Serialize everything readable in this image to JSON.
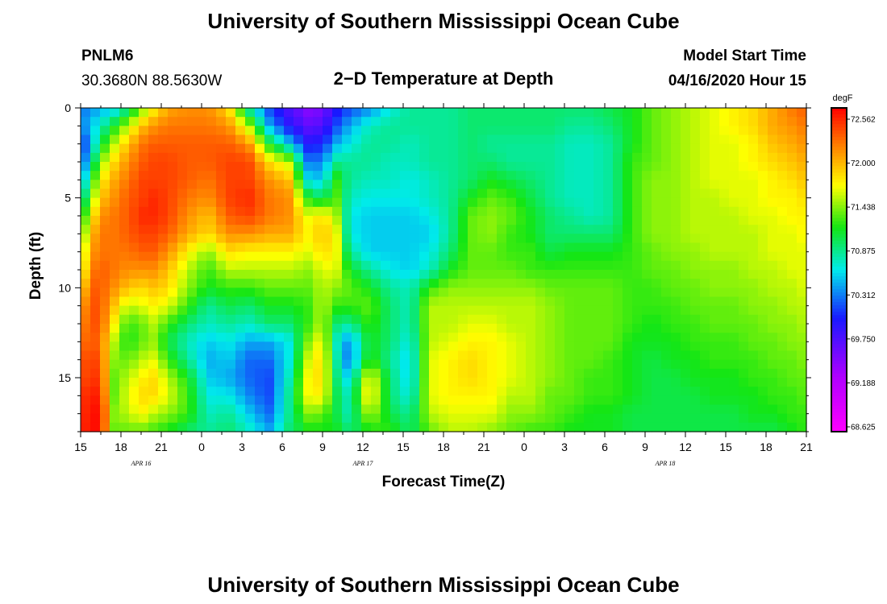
{
  "page": {
    "title_top": "University of Southern Mississippi Ocean Cube",
    "title_bottom": "University of Southern Mississippi Ocean Cube",
    "station_id": "PNLM6",
    "station_coords": "30.3680N 88.5630W",
    "product_title": "2−D Temperature at Depth",
    "model_start_label": "Model Start Time",
    "model_start_value": "04/16/2020 Hour 15"
  },
  "chart_data": {
    "type": "heatmap",
    "title": "2−D Temperature at Depth",
    "xlabel": "Forecast Time(Z)",
    "ylabel": "Depth (ft)",
    "x_ticks": [
      "15",
      "18",
      "21",
      "0",
      "3",
      "6",
      "9",
      "12",
      "15",
      "18",
      "21",
      "0",
      "3",
      "6",
      "9",
      "12",
      "15",
      "18",
      "21"
    ],
    "x_date_labels": [
      {
        "label": "APR  16",
        "hour_index": 1.5
      },
      {
        "label": "APR  17",
        "hour_index": 7
      },
      {
        "label": "APR  18",
        "hour_index": 14.5
      }
    ],
    "x_range_hours": [
      0,
      54
    ],
    "y_ticks": [
      0,
      5,
      10,
      15
    ],
    "ylim": [
      0,
      18
    ],
    "colorbar": {
      "unit": "degF",
      "labels": [
        "72.562",
        "72.000",
        "71.438",
        "70.875",
        "70.312",
        "69.750",
        "69.188",
        "68.625"
      ],
      "min": 68.625,
      "max": 72.75
    },
    "anchors_time_hours": [
      0,
      0.5,
      1.5,
      2.5,
      3.5,
      4.5,
      5.5,
      6.5,
      8,
      9.5,
      11,
      12.5,
      14,
      15.5,
      17,
      18,
      19,
      20,
      21.5,
      23,
      24.5,
      26,
      27.5,
      29,
      30.5,
      32,
      33.5,
      35,
      36.5,
      38,
      39.5,
      41,
      42.5,
      44,
      45.5,
      47,
      48.5,
      50,
      51.5,
      53,
      54
    ],
    "anchors_depth_ft": [
      0,
      1,
      2,
      3,
      4,
      5,
      6,
      7,
      8,
      9,
      10,
      11,
      12,
      13,
      14,
      15,
      16,
      17,
      18
    ],
    "values_degF": [
      [
        70.3,
        70.4,
        70.2,
        70.3,
        70.3,
        70.6,
        70.8,
        70.9,
        71.0,
        71.1,
        71.3,
        71.6,
        71.8,
        72.0,
        72.1,
        72.2,
        72.3,
        72.4,
        72.5
      ],
      [
        70.4,
        70.5,
        70.3,
        70.5,
        70.9,
        71.2,
        71.6,
        71.9,
        72.1,
        72.2,
        72.4,
        72.5,
        72.5,
        72.5,
        72.6,
        72.6,
        72.7,
        72.7,
        72.7
      ],
      [
        70.5,
        70.8,
        71.1,
        71.5,
        71.8,
        72.0,
        72.2,
        72.3,
        72.3,
        72.4,
        72.4,
        72.4,
        72.4,
        72.3,
        72.4,
        72.5,
        72.6,
        72.7,
        72.7
      ],
      [
        70.6,
        71.2,
        71.6,
        71.9,
        72.1,
        72.2,
        72.3,
        72.3,
        72.3,
        72.3,
        72.2,
        72.0,
        71.8,
        71.6,
        71.5,
        71.4,
        71.4,
        71.5,
        71.4
      ],
      [
        70.9,
        71.6,
        72.0,
        72.2,
        72.3,
        72.4,
        72.4,
        72.4,
        72.3,
        72.2,
        72.0,
        71.6,
        71.3,
        71.2,
        71.4,
        71.6,
        71.7,
        71.6,
        71.4
      ],
      [
        71.4,
        72.0,
        72.3,
        72.4,
        72.5,
        72.5,
        72.6,
        72.5,
        72.4,
        72.2,
        71.9,
        71.7,
        71.4,
        71.4,
        71.6,
        71.8,
        71.9,
        71.8,
        71.4
      ],
      [
        71.8,
        72.2,
        72.4,
        72.5,
        72.5,
        72.6,
        72.6,
        72.5,
        72.4,
        72.2,
        72.0,
        71.8,
        71.6,
        71.5,
        71.7,
        71.9,
        71.9,
        71.6,
        71.3
      ],
      [
        72.1,
        72.3,
        72.4,
        72.5,
        72.5,
        72.5,
        72.5,
        72.4,
        72.2,
        72.0,
        71.9,
        71.7,
        71.3,
        71.1,
        71.3,
        71.6,
        71.7,
        71.5,
        71.2
      ],
      [
        72.2,
        72.3,
        72.4,
        72.4,
        72.4,
        72.3,
        72.2,
        72.1,
        71.8,
        71.6,
        71.5,
        71.3,
        71.0,
        70.8,
        70.9,
        71.2,
        71.3,
        71.3,
        71.0
      ],
      [
        72.2,
        72.3,
        72.4,
        72.4,
        72.3,
        72.2,
        72.0,
        71.9,
        71.5,
        71.3,
        71.2,
        70.9,
        70.8,
        70.6,
        70.5,
        70.6,
        70.7,
        70.8,
        70.9
      ],
      [
        71.9,
        72.2,
        72.4,
        72.5,
        72.5,
        72.5,
        72.4,
        72.2,
        71.9,
        71.6,
        71.3,
        71.1,
        70.9,
        70.7,
        70.6,
        70.5,
        70.7,
        70.9,
        71.0
      ],
      [
        70.8,
        71.6,
        72.2,
        72.5,
        72.5,
        72.6,
        72.5,
        72.2,
        71.8,
        71.6,
        71.3,
        71.0,
        70.8,
        70.5,
        70.3,
        70.3,
        70.4,
        70.6,
        70.8
      ],
      [
        70.2,
        70.5,
        71.2,
        71.9,
        72.2,
        72.3,
        72.3,
        72.1,
        71.8,
        71.6,
        71.4,
        71.2,
        71.0,
        70.5,
        70.3,
        70.2,
        70.2,
        70.3,
        70.5
      ],
      [
        69.8,
        70.0,
        70.6,
        71.6,
        72.0,
        72.2,
        72.2,
        72.1,
        71.8,
        71.6,
        71.4,
        71.2,
        71.0,
        70.7,
        70.7,
        70.8,
        70.9,
        70.9,
        71.0
      ],
      [
        69.5,
        69.7,
        70.0,
        70.3,
        70.6,
        71.2,
        71.7,
        71.8,
        71.7,
        71.5,
        71.4,
        71.3,
        71.3,
        71.5,
        71.7,
        71.8,
        71.8,
        71.5,
        71.2
      ],
      [
        69.6,
        69.8,
        70.1,
        70.4,
        70.6,
        71.0,
        71.9,
        72.0,
        71.9,
        71.7,
        71.6,
        71.6,
        71.6,
        71.8,
        71.9,
        71.9,
        71.8,
        71.4,
        71.2
      ],
      [
        70.0,
        70.2,
        70.5,
        70.9,
        71.3,
        71.4,
        71.6,
        71.8,
        71.8,
        71.7,
        71.5,
        71.3,
        71.0,
        70.8,
        70.9,
        71.0,
        71.1,
        71.1,
        71.2
      ],
      [
        70.2,
        70.5,
        70.7,
        70.9,
        70.9,
        70.8,
        70.7,
        70.7,
        70.9,
        71.2,
        71.4,
        71.3,
        70.9,
        70.4,
        70.3,
        70.6,
        70.8,
        70.8,
        71.0
      ],
      [
        70.4,
        70.8,
        70.9,
        70.9,
        70.8,
        70.7,
        70.6,
        70.6,
        70.6,
        70.9,
        71.2,
        71.4,
        71.3,
        71.2,
        71.3,
        71.8,
        71.9,
        71.6,
        71.2
      ],
      [
        70.7,
        70.9,
        70.9,
        70.8,
        70.8,
        70.7,
        70.6,
        70.6,
        70.6,
        70.7,
        70.9,
        71.0,
        71.0,
        71.0,
        70.9,
        71.0,
        71.0,
        71.1,
        71.3
      ],
      [
        70.9,
        70.9,
        70.8,
        70.8,
        70.7,
        70.7,
        70.6,
        70.6,
        70.6,
        70.6,
        70.8,
        70.8,
        70.8,
        70.7,
        70.6,
        70.6,
        70.7,
        70.9,
        71.0
      ],
      [
        70.9,
        70.9,
        70.9,
        70.9,
        70.8,
        70.8,
        70.7,
        70.6,
        70.7,
        70.8,
        71.3,
        71.6,
        71.6,
        71.6,
        71.7,
        71.7,
        71.7,
        71.6,
        71.4
      ],
      [
        70.9,
        70.9,
        70.9,
        70.9,
        70.9,
        70.9,
        70.9,
        70.9,
        71.0,
        71.2,
        71.5,
        71.6,
        71.6,
        71.7,
        71.8,
        71.8,
        71.8,
        71.7,
        71.6
      ],
      [
        71.0,
        71.0,
        71.0,
        71.0,
        71.0,
        71.2,
        71.4,
        71.4,
        71.4,
        71.4,
        71.5,
        71.6,
        71.7,
        71.8,
        71.9,
        71.9,
        71.8,
        71.7,
        71.6
      ],
      [
        71.0,
        71.0,
        70.9,
        71.0,
        71.2,
        71.4,
        71.5,
        71.5,
        71.4,
        71.4,
        71.5,
        71.6,
        71.7,
        71.8,
        71.8,
        71.8,
        71.8,
        71.7,
        71.5
      ],
      [
        71.0,
        71.0,
        70.9,
        70.9,
        71.1,
        71.3,
        71.4,
        71.3,
        71.3,
        71.4,
        71.5,
        71.6,
        71.6,
        71.7,
        71.7,
        71.7,
        71.6,
        71.5,
        71.4
      ],
      [
        71.0,
        71.0,
        70.9,
        70.9,
        71.0,
        71.1,
        71.2,
        71.2,
        71.3,
        71.3,
        71.5,
        71.6,
        71.6,
        71.6,
        71.6,
        71.6,
        71.6,
        71.5,
        71.3
      ],
      [
        71.0,
        71.0,
        70.9,
        70.9,
        70.9,
        70.9,
        71.0,
        71.0,
        71.1,
        71.3,
        71.4,
        71.5,
        71.5,
        71.5,
        71.5,
        71.5,
        71.4,
        71.4,
        71.3
      ],
      [
        71.0,
        70.9,
        70.8,
        70.8,
        70.8,
        70.8,
        70.9,
        71.0,
        71.2,
        71.3,
        71.4,
        71.4,
        71.4,
        71.4,
        71.4,
        71.4,
        71.4,
        71.3,
        71.2
      ],
      [
        71.0,
        70.9,
        70.8,
        70.8,
        70.8,
        70.8,
        70.8,
        71.0,
        71.2,
        71.3,
        71.4,
        71.4,
        71.4,
        71.4,
        71.4,
        71.3,
        71.3,
        71.2,
        71.2
      ],
      [
        71.1,
        71.0,
        70.9,
        70.9,
        70.9,
        70.9,
        70.9,
        71.0,
        71.2,
        71.3,
        71.4,
        71.4,
        71.4,
        71.4,
        71.3,
        71.3,
        71.3,
        71.2,
        71.2
      ],
      [
        71.2,
        71.2,
        71.2,
        71.3,
        71.3,
        71.3,
        71.3,
        71.3,
        71.3,
        71.3,
        71.3,
        71.3,
        71.3,
        71.2,
        71.2,
        71.2,
        71.2,
        71.1,
        71.1
      ],
      [
        71.4,
        71.4,
        71.4,
        71.4,
        71.5,
        71.5,
        71.5,
        71.5,
        71.4,
        71.4,
        71.3,
        71.3,
        71.2,
        71.2,
        71.1,
        71.1,
        71.1,
        71.1,
        71.1
      ],
      [
        71.5,
        71.5,
        71.5,
        71.5,
        71.5,
        71.5,
        71.5,
        71.5,
        71.5,
        71.4,
        71.4,
        71.3,
        71.3,
        71.2,
        71.2,
        71.1,
        71.1,
        71.1,
        71.1
      ],
      [
        71.6,
        71.6,
        71.6,
        71.6,
        71.6,
        71.6,
        71.6,
        71.6,
        71.5,
        71.5,
        71.4,
        71.4,
        71.3,
        71.3,
        71.2,
        71.2,
        71.1,
        71.1,
        71.1
      ],
      [
        71.7,
        71.7,
        71.7,
        71.7,
        71.7,
        71.6,
        71.6,
        71.6,
        71.6,
        71.5,
        71.5,
        71.4,
        71.4,
        71.3,
        71.3,
        71.2,
        71.2,
        71.1,
        71.1
      ],
      [
        71.8,
        71.8,
        71.7,
        71.7,
        71.7,
        71.7,
        71.6,
        71.6,
        71.6,
        71.5,
        71.5,
        71.4,
        71.4,
        71.3,
        71.3,
        71.2,
        71.2,
        71.1,
        71.1
      ],
      [
        71.9,
        71.9,
        71.8,
        71.8,
        71.7,
        71.7,
        71.7,
        71.6,
        71.6,
        71.6,
        71.5,
        71.5,
        71.4,
        71.4,
        71.3,
        71.3,
        71.2,
        71.2,
        71.1
      ],
      [
        72.1,
        72.1,
        72.0,
        71.9,
        71.8,
        71.8,
        71.7,
        71.7,
        71.7,
        71.6,
        71.6,
        71.5,
        71.5,
        71.4,
        71.4,
        71.3,
        71.3,
        71.2,
        71.1
      ],
      [
        72.3,
        72.2,
        72.1,
        72.0,
        71.9,
        71.8,
        71.8,
        71.7,
        71.7,
        71.7,
        71.6,
        71.6,
        71.5,
        71.5,
        71.4,
        71.4,
        71.3,
        71.3,
        71.2
      ],
      [
        72.4,
        72.3,
        72.2,
        72.1,
        72.0,
        71.9,
        71.8,
        71.8,
        71.7,
        71.7,
        71.7,
        71.6,
        71.6,
        71.5,
        71.5,
        71.4,
        71.4,
        71.3,
        71.3
      ]
    ]
  }
}
